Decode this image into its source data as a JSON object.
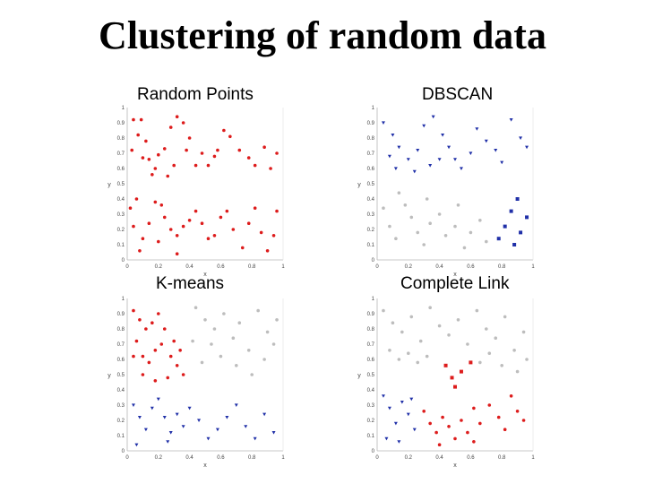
{
  "slide": {
    "title": "Clustering of random data"
  },
  "panels": [
    {
      "title": "Random Points"
    },
    {
      "title": "DBSCAN"
    },
    {
      "title": "K-means"
    },
    {
      "title": "Complete Link"
    }
  ],
  "colors": {
    "red": "#dd1c1c",
    "blue": "#2030a8",
    "gray": "#bdbdbd",
    "text": "#000000"
  },
  "chart_data": [
    {
      "type": "scatter",
      "title": "Random Points",
      "xlabel": "x",
      "ylabel": "y",
      "xlim": [
        0,
        1
      ],
      "ylim": [
        0,
        1
      ],
      "x_ticks": [
        "0",
        "0.2",
        "0.4",
        "0.6",
        "0.8",
        "1"
      ],
      "y_ticks": [
        "0",
        "0.1",
        "0.2",
        "0.3",
        "0.4",
        "0.5",
        "0.6",
        "0.7",
        "0.8",
        "0.9",
        "1"
      ],
      "series": [
        {
          "color": "red",
          "marker": "dot",
          "points": [
            [
              0.04,
              0.92
            ],
            [
              0.09,
              0.92
            ],
            [
              0.07,
              0.82
            ],
            [
              0.12,
              0.78
            ],
            [
              0.03,
              0.72
            ],
            [
              0.1,
              0.67
            ],
            [
              0.14,
              0.66
            ],
            [
              0.2,
              0.69
            ],
            [
              0.18,
              0.6
            ],
            [
              0.24,
              0.73
            ],
            [
              0.28,
              0.87
            ],
            [
              0.32,
              0.94
            ],
            [
              0.36,
              0.9
            ],
            [
              0.4,
              0.8
            ],
            [
              0.38,
              0.72
            ],
            [
              0.44,
              0.62
            ],
            [
              0.48,
              0.7
            ],
            [
              0.52,
              0.62
            ],
            [
              0.56,
              0.68
            ],
            [
              0.58,
              0.72
            ],
            [
              0.62,
              0.85
            ],
            [
              0.66,
              0.81
            ],
            [
              0.72,
              0.72
            ],
            [
              0.78,
              0.67
            ],
            [
              0.82,
              0.62
            ],
            [
              0.88,
              0.74
            ],
            [
              0.92,
              0.6
            ],
            [
              0.96,
              0.7
            ],
            [
              0.16,
              0.56
            ],
            [
              0.26,
              0.55
            ],
            [
              0.3,
              0.62
            ],
            [
              0.02,
              0.34
            ],
            [
              0.06,
              0.4
            ],
            [
              0.04,
              0.22
            ],
            [
              0.1,
              0.14
            ],
            [
              0.14,
              0.24
            ],
            [
              0.18,
              0.38
            ],
            [
              0.22,
              0.36
            ],
            [
              0.24,
              0.28
            ],
            [
              0.2,
              0.12
            ],
            [
              0.28,
              0.2
            ],
            [
              0.32,
              0.16
            ],
            [
              0.36,
              0.22
            ],
            [
              0.4,
              0.26
            ],
            [
              0.44,
              0.32
            ],
            [
              0.48,
              0.24
            ],
            [
              0.52,
              0.14
            ],
            [
              0.56,
              0.16
            ],
            [
              0.6,
              0.28
            ],
            [
              0.64,
              0.32
            ],
            [
              0.68,
              0.2
            ],
            [
              0.74,
              0.08
            ],
            [
              0.78,
              0.24
            ],
            [
              0.82,
              0.34
            ],
            [
              0.86,
              0.18
            ],
            [
              0.9,
              0.06
            ],
            [
              0.94,
              0.16
            ],
            [
              0.96,
              0.32
            ],
            [
              0.08,
              0.06
            ],
            [
              0.32,
              0.04
            ]
          ]
        }
      ]
    },
    {
      "type": "scatter",
      "title": "DBSCAN",
      "xlabel": "x",
      "ylabel": "y",
      "xlim": [
        0,
        1
      ],
      "ylim": [
        0,
        1
      ],
      "x_ticks": [
        "0",
        "0.2",
        "0.4",
        "0.6",
        "0.8",
        "1"
      ],
      "y_ticks": [
        "0",
        "0.1",
        "0.2",
        "0.3",
        "0.4",
        "0.5",
        "0.6",
        "0.7",
        "0.8",
        "0.9",
        "1"
      ],
      "series": [
        {
          "color": "blue",
          "marker": "triangle",
          "points": [
            [
              0.04,
              0.9
            ],
            [
              0.1,
              0.82
            ],
            [
              0.14,
              0.74
            ],
            [
              0.08,
              0.68
            ],
            [
              0.12,
              0.6
            ],
            [
              0.2,
              0.66
            ],
            [
              0.26,
              0.72
            ],
            [
              0.3,
              0.88
            ],
            [
              0.36,
              0.94
            ],
            [
              0.42,
              0.82
            ],
            [
              0.46,
              0.74
            ],
            [
              0.5,
              0.66
            ],
            [
              0.54,
              0.6
            ],
            [
              0.6,
              0.7
            ],
            [
              0.64,
              0.86
            ],
            [
              0.7,
              0.78
            ],
            [
              0.76,
              0.72
            ],
            [
              0.8,
              0.64
            ],
            [
              0.86,
              0.92
            ],
            [
              0.92,
              0.8
            ],
            [
              0.96,
              0.74
            ],
            [
              0.24,
              0.58
            ],
            [
              0.34,
              0.62
            ],
            [
              0.4,
              0.66
            ]
          ]
        },
        {
          "color": "blue",
          "marker": "square",
          "points": [
            [
              0.82,
              0.22
            ],
            [
              0.86,
              0.32
            ],
            [
              0.88,
              0.1
            ],
            [
              0.92,
              0.18
            ],
            [
              0.9,
              0.4
            ],
            [
              0.78,
              0.14
            ],
            [
              0.96,
              0.28
            ]
          ]
        },
        {
          "color": "gray",
          "marker": "dot",
          "points": [
            [
              0.04,
              0.34
            ],
            [
              0.08,
              0.22
            ],
            [
              0.12,
              0.14
            ],
            [
              0.18,
              0.36
            ],
            [
              0.22,
              0.28
            ],
            [
              0.26,
              0.18
            ],
            [
              0.3,
              0.1
            ],
            [
              0.34,
              0.24
            ],
            [
              0.4,
              0.3
            ],
            [
              0.44,
              0.16
            ],
            [
              0.5,
              0.22
            ],
            [
              0.56,
              0.08
            ],
            [
              0.6,
              0.18
            ],
            [
              0.66,
              0.26
            ],
            [
              0.7,
              0.12
            ],
            [
              0.14,
              0.44
            ],
            [
              0.32,
              0.4
            ],
            [
              0.52,
              0.36
            ]
          ]
        }
      ]
    },
    {
      "type": "scatter",
      "title": "K-means",
      "xlabel": "x",
      "ylabel": "y",
      "xlim": [
        0,
        1
      ],
      "ylim": [
        0,
        1
      ],
      "x_ticks": [
        "0",
        "0.2",
        "0.4",
        "0.6",
        "0.8",
        "1"
      ],
      "y_ticks": [
        "0",
        "0.1",
        "0.2",
        "0.3",
        "0.4",
        "0.5",
        "0.6",
        "0.7",
        "0.8",
        "0.9",
        "1"
      ],
      "series": [
        {
          "color": "red",
          "marker": "dot",
          "points": [
            [
              0.04,
              0.92
            ],
            [
              0.08,
              0.86
            ],
            [
              0.12,
              0.8
            ],
            [
              0.16,
              0.84
            ],
            [
              0.2,
              0.9
            ],
            [
              0.24,
              0.8
            ],
            [
              0.06,
              0.72
            ],
            [
              0.1,
              0.62
            ],
            [
              0.14,
              0.58
            ],
            [
              0.18,
              0.66
            ],
            [
              0.22,
              0.7
            ],
            [
              0.28,
              0.62
            ],
            [
              0.32,
              0.56
            ],
            [
              0.36,
              0.5
            ],
            [
              0.26,
              0.48
            ],
            [
              0.18,
              0.46
            ],
            [
              0.1,
              0.5
            ],
            [
              0.3,
              0.72
            ],
            [
              0.34,
              0.66
            ],
            [
              0.04,
              0.62
            ]
          ]
        },
        {
          "color": "gray",
          "marker": "dot",
          "points": [
            [
              0.44,
              0.94
            ],
            [
              0.5,
              0.86
            ],
            [
              0.56,
              0.8
            ],
            [
              0.62,
              0.9
            ],
            [
              0.68,
              0.74
            ],
            [
              0.72,
              0.84
            ],
            [
              0.78,
              0.66
            ],
            [
              0.84,
              0.92
            ],
            [
              0.9,
              0.78
            ],
            [
              0.94,
              0.7
            ],
            [
              0.6,
              0.62
            ],
            [
              0.54,
              0.7
            ],
            [
              0.48,
              0.58
            ],
            [
              0.7,
              0.56
            ],
            [
              0.8,
              0.5
            ],
            [
              0.88,
              0.6
            ],
            [
              0.96,
              0.86
            ],
            [
              0.42,
              0.72
            ]
          ]
        },
        {
          "color": "blue",
          "marker": "triangle",
          "points": [
            [
              0.04,
              0.3
            ],
            [
              0.08,
              0.22
            ],
            [
              0.12,
              0.14
            ],
            [
              0.16,
              0.28
            ],
            [
              0.2,
              0.34
            ],
            [
              0.24,
              0.22
            ],
            [
              0.28,
              0.12
            ],
            [
              0.32,
              0.24
            ],
            [
              0.36,
              0.16
            ],
            [
              0.4,
              0.28
            ],
            [
              0.46,
              0.2
            ],
            [
              0.52,
              0.08
            ],
            [
              0.58,
              0.14
            ],
            [
              0.64,
              0.22
            ],
            [
              0.7,
              0.3
            ],
            [
              0.76,
              0.16
            ],
            [
              0.82,
              0.08
            ],
            [
              0.88,
              0.24
            ],
            [
              0.94,
              0.12
            ],
            [
              0.06,
              0.04
            ],
            [
              0.26,
              0.06
            ]
          ]
        }
      ]
    },
    {
      "type": "scatter",
      "title": "Complete Link",
      "xlabel": "x",
      "ylabel": "y",
      "xlim": [
        0,
        1
      ],
      "ylim": [
        0,
        1
      ],
      "x_ticks": [
        "0",
        "0.2",
        "0.4",
        "0.6",
        "0.8",
        "1"
      ],
      "y_ticks": [
        "0",
        "0.1",
        "0.2",
        "0.3",
        "0.4",
        "0.5",
        "0.6",
        "0.7",
        "0.8",
        "0.9",
        "1"
      ],
      "series": [
        {
          "color": "gray",
          "marker": "dot",
          "points": [
            [
              0.04,
              0.92
            ],
            [
              0.1,
              0.84
            ],
            [
              0.16,
              0.78
            ],
            [
              0.22,
              0.88
            ],
            [
              0.28,
              0.72
            ],
            [
              0.34,
              0.94
            ],
            [
              0.4,
              0.82
            ],
            [
              0.46,
              0.76
            ],
            [
              0.52,
              0.86
            ],
            [
              0.58,
              0.7
            ],
            [
              0.64,
              0.92
            ],
            [
              0.7,
              0.8
            ],
            [
              0.76,
              0.74
            ],
            [
              0.82,
              0.88
            ],
            [
              0.88,
              0.66
            ],
            [
              0.94,
              0.78
            ],
            [
              0.08,
              0.66
            ],
            [
              0.14,
              0.6
            ],
            [
              0.2,
              0.64
            ],
            [
              0.26,
              0.58
            ],
            [
              0.32,
              0.62
            ],
            [
              0.66,
              0.58
            ],
            [
              0.72,
              0.64
            ],
            [
              0.8,
              0.56
            ],
            [
              0.9,
              0.52
            ],
            [
              0.96,
              0.6
            ]
          ]
        },
        {
          "color": "red",
          "marker": "square",
          "points": [
            [
              0.44,
              0.56
            ],
            [
              0.48,
              0.48
            ],
            [
              0.54,
              0.52
            ],
            [
              0.6,
              0.58
            ],
            [
              0.5,
              0.42
            ]
          ]
        },
        {
          "color": "red",
          "marker": "dot",
          "points": [
            [
              0.3,
              0.26
            ],
            [
              0.34,
              0.18
            ],
            [
              0.38,
              0.12
            ],
            [
              0.42,
              0.22
            ],
            [
              0.46,
              0.16
            ],
            [
              0.5,
              0.08
            ],
            [
              0.54,
              0.2
            ],
            [
              0.58,
              0.12
            ],
            [
              0.62,
              0.28
            ],
            [
              0.66,
              0.18
            ],
            [
              0.72,
              0.3
            ],
            [
              0.78,
              0.22
            ],
            [
              0.82,
              0.14
            ],
            [
              0.86,
              0.36
            ],
            [
              0.9,
              0.26
            ],
            [
              0.94,
              0.2
            ],
            [
              0.4,
              0.04
            ],
            [
              0.62,
              0.06
            ]
          ]
        },
        {
          "color": "blue",
          "marker": "triangle",
          "points": [
            [
              0.04,
              0.36
            ],
            [
              0.08,
              0.28
            ],
            [
              0.12,
              0.18
            ],
            [
              0.16,
              0.32
            ],
            [
              0.2,
              0.24
            ],
            [
              0.24,
              0.14
            ],
            [
              0.06,
              0.08
            ],
            [
              0.14,
              0.06
            ],
            [
              0.22,
              0.34
            ]
          ]
        }
      ]
    }
  ]
}
